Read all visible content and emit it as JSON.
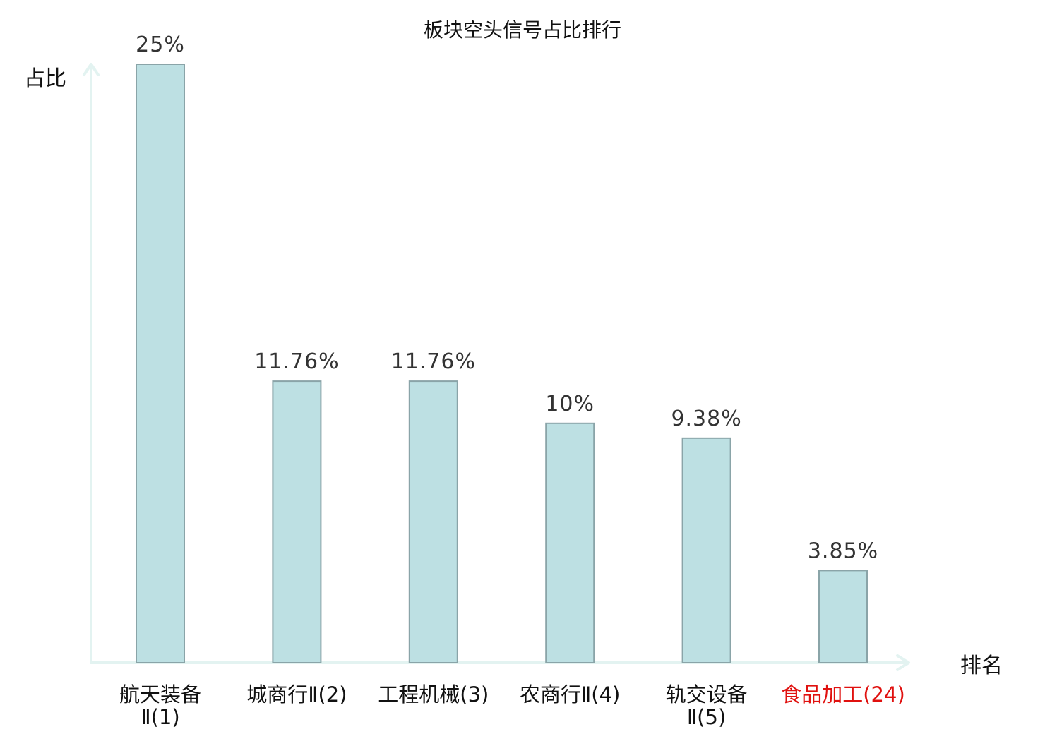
{
  "chart_data": {
    "type": "bar",
    "title": "板块空头信号占比排行",
    "xlabel": "排名",
    "ylabel": "占比",
    "ylim": [
      0,
      25
    ],
    "categories": [
      [
        "航天装备",
        "Ⅱ(1)"
      ],
      [
        "城商行Ⅱ(2)"
      ],
      [
        "工程机械(3)"
      ],
      [
        "农商行Ⅱ(4)"
      ],
      [
        "轨交设备",
        "Ⅱ(5)"
      ],
      [
        "食品加工(24)"
      ]
    ],
    "values": [
      25,
      11.76,
      11.76,
      10,
      9.38,
      3.85
    ],
    "value_labels": [
      "25%",
      "11.76%",
      "11.76%",
      "10%",
      "9.38%",
      "3.85%"
    ],
    "highlight_index": 5,
    "colors": {
      "bar_fill": "#bde0e3",
      "bar_stroke": "#8aa4a8",
      "axis": "#e3f3f1",
      "highlight_text": "#e0110f"
    },
    "grid": false,
    "legend": "none"
  }
}
